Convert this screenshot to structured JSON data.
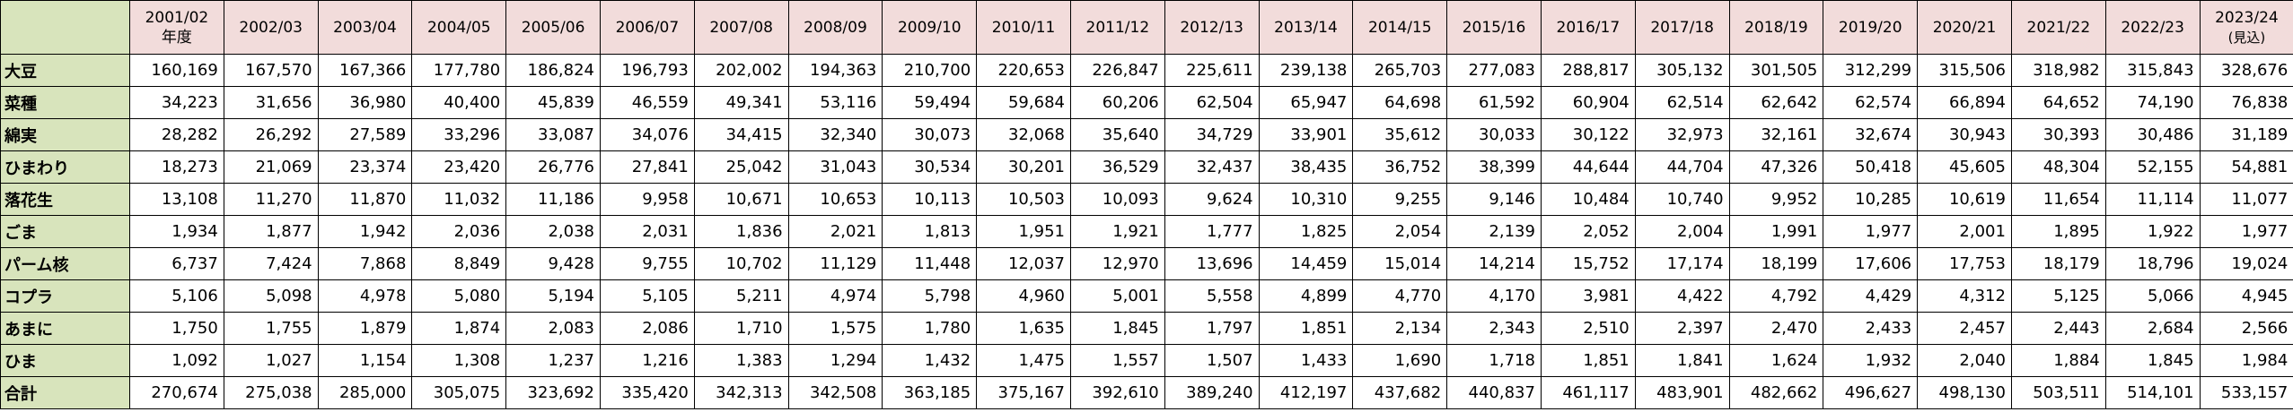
{
  "table": {
    "columns": [
      "2001/02",
      "2002/03",
      "2003/04",
      "2004/05",
      "2005/06",
      "2006/07",
      "2007/08",
      "2008/09",
      "2009/10",
      "2010/11",
      "2011/12",
      "2012/13",
      "2013/14",
      "2014/15",
      "2015/16",
      "2016/17",
      "2017/18",
      "2018/19",
      "2019/20",
      "2020/21",
      "2021/22",
      "2022/23",
      "2023/24"
    ],
    "first_column_note": "年度",
    "last_column_note": "(見込)",
    "rows": [
      {
        "label": "大豆",
        "values": [
          "160,169",
          "167,570",
          "167,366",
          "177,780",
          "186,824",
          "196,793",
          "202,002",
          "194,363",
          "210,700",
          "220,653",
          "226,847",
          "225,611",
          "239,138",
          "265,703",
          "277,083",
          "288,817",
          "305,132",
          "301,505",
          "312,299",
          "315,506",
          "318,982",
          "315,843",
          "328,676"
        ]
      },
      {
        "label": "菜種",
        "values": [
          "34,223",
          "31,656",
          "36,980",
          "40,400",
          "45,839",
          "46,559",
          "49,341",
          "53,116",
          "59,494",
          "59,684",
          "60,206",
          "62,504",
          "65,947",
          "64,698",
          "61,592",
          "60,904",
          "62,514",
          "62,642",
          "62,574",
          "66,894",
          "64,652",
          "74,190",
          "76,838"
        ]
      },
      {
        "label": "綿実",
        "values": [
          "28,282",
          "26,292",
          "27,589",
          "33,296",
          "33,087",
          "34,076",
          "34,415",
          "32,340",
          "30,073",
          "32,068",
          "35,640",
          "34,729",
          "33,901",
          "35,612",
          "30,033",
          "30,122",
          "32,973",
          "32,161",
          "32,674",
          "30,943",
          "30,393",
          "30,486",
          "31,189"
        ]
      },
      {
        "label": "ひまわり",
        "values": [
          "18,273",
          "21,069",
          "23,374",
          "23,420",
          "26,776",
          "27,841",
          "25,042",
          "31,043",
          "30,534",
          "30,201",
          "36,529",
          "32,437",
          "38,435",
          "36,752",
          "38,399",
          "44,644",
          "44,704",
          "47,326",
          "50,418",
          "45,605",
          "48,304",
          "52,155",
          "54,881"
        ]
      },
      {
        "label": "落花生",
        "values": [
          "13,108",
          "11,270",
          "11,870",
          "11,032",
          "11,186",
          "9,958",
          "10,671",
          "10,653",
          "10,113",
          "10,503",
          "10,093",
          "9,624",
          "10,310",
          "9,255",
          "9,146",
          "10,484",
          "10,740",
          "9,952",
          "10,285",
          "10,619",
          "11,654",
          "11,114",
          "11,077"
        ]
      },
      {
        "label": "ごま",
        "values": [
          "1,934",
          "1,877",
          "1,942",
          "2,036",
          "2,038",
          "2,031",
          "1,836",
          "2,021",
          "1,813",
          "1,951",
          "1,921",
          "1,777",
          "1,825",
          "2,054",
          "2,139",
          "2,052",
          "2,004",
          "1,991",
          "1,977",
          "2,001",
          "1,895",
          "1,922",
          "1,977"
        ]
      },
      {
        "label": "パーム核",
        "values": [
          "6,737",
          "7,424",
          "7,868",
          "8,849",
          "9,428",
          "9,755",
          "10,702",
          "11,129",
          "11,448",
          "12,037",
          "12,970",
          "13,696",
          "14,459",
          "15,014",
          "14,214",
          "15,752",
          "17,174",
          "18,199",
          "17,606",
          "17,753",
          "18,179",
          "18,796",
          "19,024"
        ]
      },
      {
        "label": "コプラ",
        "values": [
          "5,106",
          "5,098",
          "4,978",
          "5,080",
          "5,194",
          "5,105",
          "5,211",
          "4,974",
          "5,798",
          "4,960",
          "5,001",
          "5,558",
          "4,899",
          "4,770",
          "4,170",
          "3,981",
          "4,422",
          "4,792",
          "4,429",
          "4,312",
          "5,125",
          "5,066",
          "4,945"
        ]
      },
      {
        "label": "あまに",
        "values": [
          "1,750",
          "1,755",
          "1,879",
          "1,874",
          "2,083",
          "2,086",
          "1,710",
          "1,575",
          "1,780",
          "1,635",
          "1,845",
          "1,797",
          "1,851",
          "2,134",
          "2,343",
          "2,510",
          "2,397",
          "2,470",
          "2,433",
          "2,457",
          "2,443",
          "2,684",
          "2,566"
        ]
      },
      {
        "label": "ひま",
        "values": [
          "1,092",
          "1,027",
          "1,154",
          "1,308",
          "1,237",
          "1,216",
          "1,383",
          "1,294",
          "1,432",
          "1,475",
          "1,557",
          "1,507",
          "1,433",
          "1,690",
          "1,718",
          "1,851",
          "1,841",
          "1,624",
          "1,932",
          "2,040",
          "1,884",
          "1,845",
          "1,984"
        ]
      },
      {
        "label": "合計",
        "values": [
          "270,674",
          "275,038",
          "285,000",
          "305,075",
          "323,692",
          "335,420",
          "342,313",
          "342,508",
          "363,185",
          "375,167",
          "392,610",
          "389,240",
          "412,197",
          "437,682",
          "440,837",
          "461,117",
          "483,901",
          "482,662",
          "496,627",
          "498,130",
          "503,511",
          "514,101",
          "533,157"
        ]
      }
    ]
  }
}
